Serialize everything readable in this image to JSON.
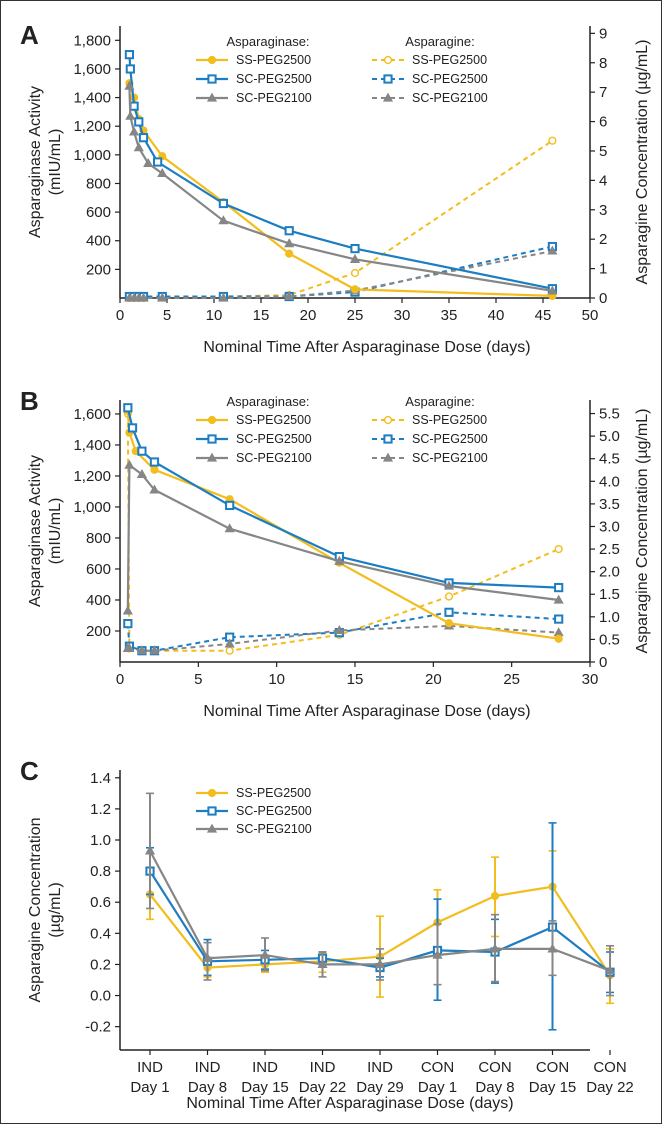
{
  "colors": {
    "SS-PEG2500": "#F2BD1D",
    "SC-PEG2500": "#1D7DC2",
    "SC-PEG2100": "#868686",
    "axis": "#222222"
  },
  "chart_data": [
    {
      "panel": "A",
      "type": "line",
      "xlabel": "Nominal Time After Asparaginase Dose (days)",
      "ylabel_left": [
        "Asparaginase Activity",
        "(mIU/mL)"
      ],
      "ylabel_right": "Asparagine Concentration (µg/mL)",
      "xlim": [
        0,
        50
      ],
      "ylim_left": [
        0,
        1900
      ],
      "ylim_right": [
        0,
        9.25
      ],
      "x_ticks": [
        0,
        5,
        10,
        15,
        20,
        25,
        30,
        35,
        40,
        45,
        50
      ],
      "y_left_ticks": [
        200,
        400,
        600,
        800,
        1000,
        1200,
        1400,
        1600,
        1800
      ],
      "y_left_tick_labels": [
        "200",
        "400",
        "600",
        "800",
        "1,000",
        "1,200",
        "1,400",
        "1,600",
        "1,800"
      ],
      "y_right_ticks": [
        0,
        1,
        2,
        3,
        4,
        5,
        6,
        7,
        8,
        9
      ],
      "y_right_tick_labels": [
        "0",
        "1",
        "2",
        "3",
        "4",
        "5",
        "6",
        "7",
        "8",
        "9"
      ],
      "legend_headers": [
        "Asparaginase:",
        "Asparagine:"
      ],
      "activity_series": [
        {
          "name": "SS-PEG2500",
          "points": [
            [
              1,
              1500
            ],
            [
              1.5,
              1400
            ],
            [
              2,
              1250
            ],
            [
              2.5,
              1170
            ],
            [
              4.5,
              990
            ],
            [
              11,
              670
            ],
            [
              18,
              310
            ],
            [
              25,
              60
            ],
            [
              46,
              15
            ]
          ]
        },
        {
          "name": "SC-PEG2500",
          "points": [
            [
              1,
              1700
            ],
            [
              1.1,
              1600
            ],
            [
              1.5,
              1340
            ],
            [
              2,
              1230
            ],
            [
              2.5,
              1120
            ],
            [
              4,
              950
            ],
            [
              11,
              660
            ],
            [
              18,
              470
            ],
            [
              25,
              345
            ],
            [
              46,
              65
            ]
          ]
        },
        {
          "name": "SC-PEG2100",
          "points": [
            [
              1,
              1480
            ],
            [
              1.1,
              1270
            ],
            [
              1.5,
              1160
            ],
            [
              2,
              1050
            ],
            [
              3,
              940
            ],
            [
              4.5,
              870
            ],
            [
              11,
              540
            ],
            [
              18,
              380
            ],
            [
              25,
              270
            ],
            [
              46,
              50
            ]
          ]
        }
      ],
      "asparagine_series": [
        {
          "name": "SS-PEG2500",
          "points": [
            [
              1,
              0
            ],
            [
              1.5,
              0
            ],
            [
              2,
              0
            ],
            [
              2.5,
              0
            ],
            [
              4.5,
              0.05
            ],
            [
              11,
              0.05
            ],
            [
              18,
              0.1
            ],
            [
              25,
              0.85
            ],
            [
              46,
              5.35
            ]
          ]
        },
        {
          "name": "SC-PEG2500",
          "points": [
            [
              1,
              0.05
            ],
            [
              1.5,
              0.05
            ],
            [
              2,
              0.05
            ],
            [
              2.5,
              0.05
            ],
            [
              4.5,
              0.05
            ],
            [
              11,
              0.05
            ],
            [
              18,
              0.05
            ],
            [
              25,
              0.2
            ],
            [
              46,
              1.75
            ]
          ]
        },
        {
          "name": "SC-PEG2100",
          "points": [
            [
              1,
              0
            ],
            [
              1.5,
              0
            ],
            [
              2,
              0
            ],
            [
              2.5,
              0
            ],
            [
              4.5,
              0
            ],
            [
              11,
              0
            ],
            [
              18,
              0.05
            ],
            [
              25,
              0.25
            ],
            [
              46,
              1.6
            ]
          ]
        }
      ]
    },
    {
      "panel": "B",
      "type": "line",
      "xlabel": "Nominal Time After Asparaginase Dose (days)",
      "ylabel_left": [
        "Asparaginase Activity",
        "(mIU/mL)"
      ],
      "ylabel_right": "Asparagine Concentration (µg/mL)",
      "xlim": [
        0,
        30
      ],
      "ylim_left": [
        0,
        1690
      ],
      "ylim_right": [
        0,
        5.8
      ],
      "x_ticks": [
        0,
        5,
        10,
        15,
        20,
        25,
        30
      ],
      "y_left_ticks": [
        200,
        400,
        600,
        800,
        1000,
        1200,
        1400,
        1600
      ],
      "y_left_tick_labels": [
        "200",
        "400",
        "600",
        "800",
        "1,000",
        "1,200",
        "1,400",
        "1,600"
      ],
      "y_right_ticks": [
        0,
        0.5,
        1,
        1.5,
        2,
        2.5,
        3,
        3.5,
        4,
        4.5,
        5,
        5.5
      ],
      "y_right_tick_labels": [
        "0",
        "0.5",
        "1.0",
        "1.5",
        "2.0",
        "2.5",
        "3.0",
        "3.5",
        "4.0",
        "4.5",
        "5.0",
        "5.5"
      ],
      "legend_headers": [
        "Asparaginase:",
        "Asparagine:"
      ],
      "activity_series": [
        {
          "name": "SS-PEG2500",
          "points": [
            [
              0.5,
              1620
            ],
            [
              0.6,
              1480
            ],
            [
              1,
              1360
            ],
            [
              2.2,
              1240
            ],
            [
              7,
              1050
            ],
            [
              14,
              640
            ],
            [
              21,
              250
            ],
            [
              28,
              150
            ]
          ]
        },
        {
          "name": "SC-PEG2500",
          "points": [
            [
              0.5,
              1640
            ],
            [
              0.8,
              1510
            ],
            [
              1.4,
              1360
            ],
            [
              2.2,
              1290
            ],
            [
              7,
              1010
            ],
            [
              14,
              680
            ],
            [
              21,
              510
            ],
            [
              28,
              480
            ]
          ]
        },
        {
          "name": "SC-PEG2100",
          "points": [
            [
              0.5,
              330
            ],
            [
              0.6,
              1270
            ],
            [
              1.4,
              1210
            ],
            [
              2.2,
              1110
            ],
            [
              7,
              860
            ],
            [
              14,
              650
            ],
            [
              21,
              490
            ],
            [
              28,
              400
            ]
          ]
        }
      ],
      "asparagine_series": [
        {
          "name": "SS-PEG2500",
          "points": [
            [
              0.5,
              5.5
            ],
            [
              0.6,
              0.3
            ],
            [
              1.4,
              0.25
            ],
            [
              2.2,
              0.25
            ],
            [
              7,
              0.25
            ],
            [
              14,
              0.6
            ],
            [
              21,
              1.45
            ],
            [
              28,
              2.5
            ]
          ]
        },
        {
          "name": "SC-PEG2500",
          "points": [
            [
              0.5,
              0.85
            ],
            [
              0.6,
              0.35
            ],
            [
              1.4,
              0.25
            ],
            [
              2.2,
              0.25
            ],
            [
              7,
              0.55
            ],
            [
              14,
              0.65
            ],
            [
              21,
              1.1
            ],
            [
              28,
              0.95
            ]
          ]
        },
        {
          "name": "SC-PEG2100",
          "points": [
            [
              0.5,
              0.3
            ],
            [
              0.6,
              0.3
            ],
            [
              1.4,
              0.25
            ],
            [
              2.2,
              0.25
            ],
            [
              7,
              0.4
            ],
            [
              14,
              0.7
            ],
            [
              21,
              0.8
            ],
            [
              28,
              0.65
            ]
          ]
        }
      ]
    },
    {
      "panel": "C",
      "type": "line",
      "xlabel": "Nominal Time After Asparaginase Dose (days)",
      "ylabel": [
        "Asparagine Concentration",
        "(µg/mL)"
      ],
      "ylim": [
        -0.35,
        1.45
      ],
      "y_ticks": [
        -0.2,
        0,
        0.2,
        0.4,
        0.6,
        0.8,
        1.0,
        1.2,
        1.4
      ],
      "y_tick_labels": [
        "-0.2",
        "0.0",
        "0.2",
        "0.4",
        "0.6",
        "0.8",
        "1.0",
        "1.2",
        "1.4"
      ],
      "categories": [
        [
          "IND",
          "Day 1"
        ],
        [
          "IND",
          "Day 8"
        ],
        [
          "IND",
          "Day 15"
        ],
        [
          "IND",
          "Day 22"
        ],
        [
          "IND",
          "Day 29"
        ],
        [
          "CON",
          "Day 1"
        ],
        [
          "CON",
          "Day 8"
        ],
        [
          "CON",
          "Day 15"
        ],
        [
          "CON",
          "Day 22"
        ]
      ],
      "series": [
        {
          "name": "SS-PEG2500",
          "values": [
            0.65,
            0.18,
            0.2,
            0.22,
            0.25,
            0.47,
            0.64,
            0.7,
            0.13
          ],
          "err_low": [
            0.49,
            0.12,
            0.15,
            0.15,
            -0.01,
            0.27,
            0.38,
            0.45,
            -0.05
          ],
          "err_high": [
            0.82,
            0.24,
            0.25,
            0.27,
            0.51,
            0.68,
            0.89,
            0.93,
            0.3
          ]
        },
        {
          "name": "SC-PEG2500",
          "values": [
            0.8,
            0.22,
            0.23,
            0.24,
            0.18,
            0.29,
            0.28,
            0.44,
            0.15
          ],
          "err_low": [
            0.65,
            0.13,
            0.17,
            0.19,
            0.12,
            -0.03,
            0.08,
            -0.22,
            0.02
          ],
          "err_high": [
            0.95,
            0.36,
            0.29,
            0.28,
            0.24,
            0.62,
            0.49,
            1.11,
            0.28
          ]
        },
        {
          "name": "SC-PEG2100",
          "values": [
            0.93,
            0.24,
            0.26,
            0.2,
            0.2,
            0.26,
            0.3,
            0.3,
            0.16
          ],
          "err_low": [
            0.56,
            0.1,
            0.16,
            0.12,
            0.1,
            0.07,
            0.09,
            0.13,
            0.0
          ],
          "err_high": [
            1.3,
            0.34,
            0.37,
            0.28,
            0.3,
            0.46,
            0.52,
            0.48,
            0.32
          ]
        }
      ]
    }
  ]
}
